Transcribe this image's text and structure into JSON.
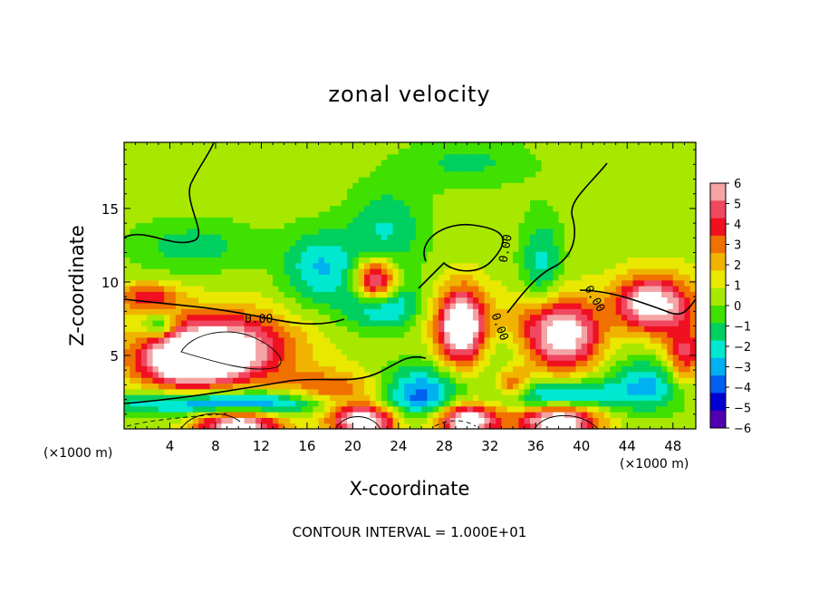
{
  "chart_data": {
    "type": "heatmap",
    "title": "zonal velocity",
    "xlabel": "X-coordinate",
    "ylabel": "Z-coordinate",
    "x_unit_left": "(×1000 m)",
    "x_unit_right": "(×1000 m)",
    "footer": "CONTOUR INTERVAL = 1.000E+01",
    "xlim": [
      0,
      50
    ],
    "ylim": [
      0,
      19.5
    ],
    "x_ticks": [
      4,
      8,
      12,
      16,
      20,
      24,
      28,
      32,
      36,
      40,
      44,
      48
    ],
    "y_ticks": [
      5,
      10,
      15
    ],
    "colorbar": {
      "ticks": [
        6,
        5,
        4,
        3,
        2,
        1,
        0,
        -1,
        -2,
        -3,
        -4,
        -5,
        -6
      ],
      "colors": [
        "#f4a4a4",
        "#f04860",
        "#f01020",
        "#f07000",
        "#f0b400",
        "#e8e800",
        "#a8e800",
        "#40e000",
        "#00d060",
        "#00e8d0",
        "#00b0f0",
        "#0060f0",
        "#0000d0",
        "#5000b0"
      ],
      "range": [
        -6,
        6
      ]
    },
    "contour_labels": [
      "0.00",
      "0.00",
      "0.00",
      "0.00",
      "0.00"
    ],
    "background_value": 0.5,
    "features": [
      {
        "x": 30.0,
        "z": 18.2,
        "v": -1.6,
        "sx": 4.0,
        "sz": 1.2
      },
      {
        "x": 17.0,
        "z": 11.0,
        "v": -3.0,
        "sx": 2.2,
        "sz": 1.8
      },
      {
        "x": 22.0,
        "z": 10.0,
        "v": -3.2,
        "sx": 2.0,
        "sz": 1.8
      },
      {
        "x": 23.0,
        "z": 14.0,
        "v": -2.0,
        "sx": 2.5,
        "sz": 2.0
      },
      {
        "x": 36.5,
        "z": 11.0,
        "v": -2.6,
        "sx": 1.3,
        "sz": 2.5
      },
      {
        "x": 6.0,
        "z": 12.5,
        "v": -1.8,
        "sx": 4.0,
        "sz": 1.3
      },
      {
        "x": 3.0,
        "z": 7.0,
        "v": -3.5,
        "sx": 0.9,
        "sz": 0.6
      },
      {
        "x": 22.5,
        "z": 8.5,
        "v": -3.5,
        "sx": 2.0,
        "sz": 1.0
      },
      {
        "x": 42.0,
        "z": 7.0,
        "v": -2.6,
        "sx": 2.5,
        "sz": 2.0
      },
      {
        "x": 46.0,
        "z": 3.0,
        "v": -3.2,
        "sx": 2.5,
        "sz": 1.2
      },
      {
        "x": 10.0,
        "z": 1.8,
        "v": -5.0,
        "sx": 8.0,
        "sz": 0.6
      },
      {
        "x": 26.0,
        "z": 2.5,
        "v": -4.0,
        "sx": 2.5,
        "sz": 1.3
      },
      {
        "x": 38.0,
        "z": 2.2,
        "v": -4.5,
        "sx": 3.5,
        "sz": 0.8
      },
      {
        "x": 34.0,
        "z": 5.5,
        "v": -1.6,
        "sx": 2.5,
        "sz": 1.2
      },
      {
        "x": 8.5,
        "z": 5.5,
        "v": 7.0,
        "sx": 4.2,
        "sz": 1.7
      },
      {
        "x": 5.0,
        "z": 4.5,
        "v": 4.5,
        "sx": 3.0,
        "sz": 1.3
      },
      {
        "x": 22.0,
        "z": 10.0,
        "v": 9.0,
        "sx": 1.4,
        "sz": 1.2
      },
      {
        "x": 29.5,
        "z": 7.0,
        "v": 8.0,
        "sx": 1.5,
        "sz": 1.8
      },
      {
        "x": 38.5,
        "z": 6.5,
        "v": 8.0,
        "sx": 3.0,
        "sz": 1.8
      },
      {
        "x": 46.0,
        "z": 8.5,
        "v": 7.0,
        "sx": 2.5,
        "sz": 1.4
      },
      {
        "x": 10.0,
        "z": 0.2,
        "v": 7.0,
        "sx": 2.5,
        "sz": 0.8
      },
      {
        "x": 21.0,
        "z": 0.6,
        "v": 7.0,
        "sx": 2.0,
        "sz": 0.9
      },
      {
        "x": 30.0,
        "z": 0.6,
        "v": 7.0,
        "sx": 2.0,
        "sz": 0.9
      },
      {
        "x": 38.0,
        "z": 0.6,
        "v": 7.5,
        "sx": 2.5,
        "sz": 0.9
      },
      {
        "x": 18.0,
        "z": 2.5,
        "v": 3.5,
        "sx": 3.0,
        "sz": 1.0
      },
      {
        "x": 34.0,
        "z": 3.0,
        "v": 3.5,
        "sx": 1.0,
        "sz": 0.7
      },
      {
        "x": 2.0,
        "z": 9.0,
        "v": 3.5,
        "sx": 2.0,
        "sz": 0.7
      },
      {
        "x": 49.0,
        "z": 5.0,
        "v": 4.0,
        "sx": 1.2,
        "sz": 1.5
      }
    ]
  }
}
